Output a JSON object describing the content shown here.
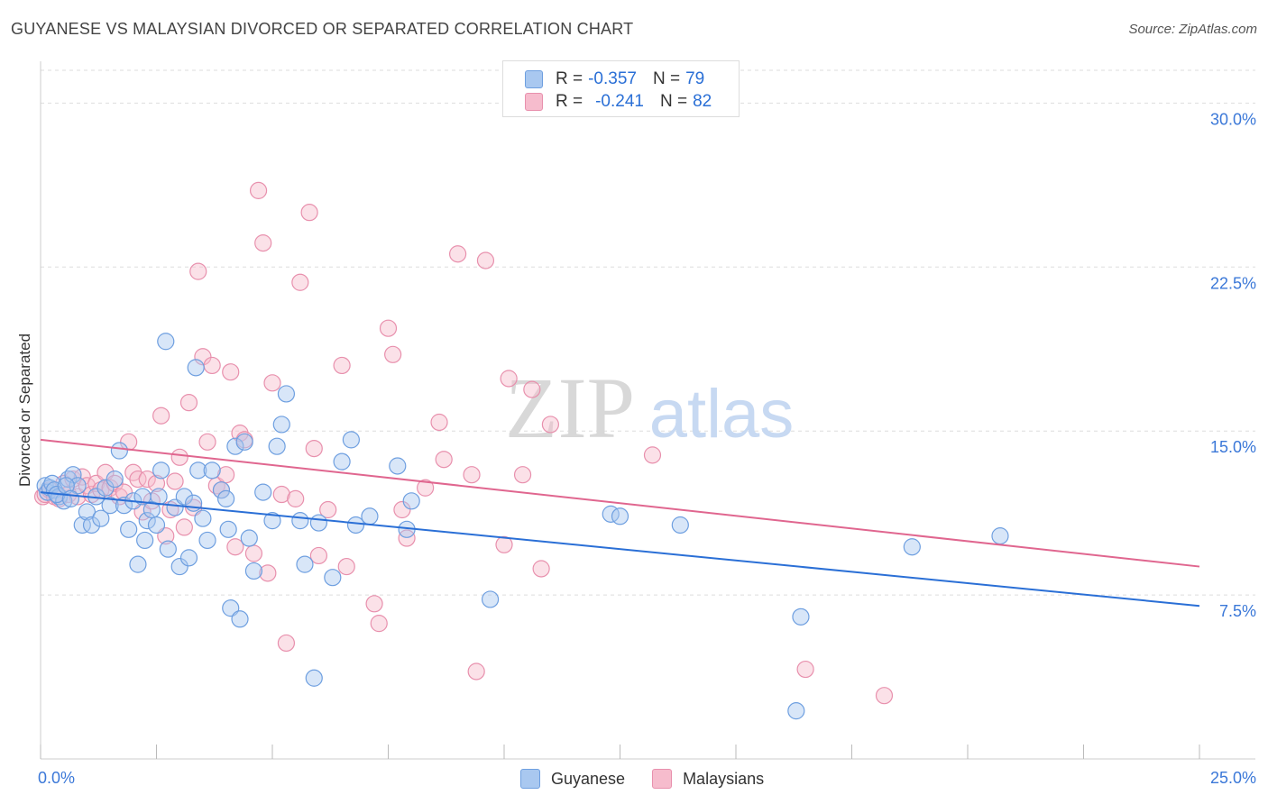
{
  "header": {
    "title": "GUYANESE VS MALAYSIAN DIVORCED OR SEPARATED CORRELATION CHART",
    "source": "Source: ZipAtlas.com"
  },
  "watermark": {
    "zip": "ZIP",
    "atlas": "atlas"
  },
  "legend_top": {
    "rows": [
      {
        "r_label": "R =",
        "r_value": "-0.357",
        "n_label": "N =",
        "n_value": "79"
      },
      {
        "r_label": "R =",
        "r_value": "-0.241",
        "n_label": "N =",
        "n_value": "82"
      }
    ]
  },
  "legend_bottom": {
    "items": [
      {
        "label": "Guyanese"
      },
      {
        "label": "Malaysians"
      }
    ]
  },
  "colors": {
    "guyanese_fill": "#a9c8f0",
    "guyanese_stroke": "#6e9fe0",
    "guyanese_line": "#2a6fd6",
    "malaysians_fill": "#f6bccd",
    "malaysians_stroke": "#e890ad",
    "malaysians_line": "#e0668f",
    "tick_label": "#3b78d8",
    "grid": "#dddddd"
  },
  "chart_data": {
    "type": "scatter",
    "title": "GUYANESE VS MALAYSIAN DIVORCED OR SEPARATED CORRELATION CHART",
    "xlabel": "",
    "ylabel": "Divorced or Separated",
    "xlim": [
      0,
      25
    ],
    "ylim": [
      0,
      31.5
    ],
    "x_tick_labels": [
      "0.0%",
      "25.0%"
    ],
    "y_ticks": [
      7.5,
      15.0,
      22.5,
      30.0
    ],
    "y_tick_labels": [
      "7.5%",
      "15.0%",
      "22.5%",
      "30.0%"
    ],
    "grid": true,
    "legend_position": "top-center",
    "series": [
      {
        "name": "Guyanese",
        "r": -0.357,
        "n": 79,
        "trend": {
          "x": [
            0,
            25
          ],
          "y": [
            12.2,
            7.0
          ]
        },
        "points": [
          [
            0.1,
            12.5
          ],
          [
            0.15,
            12.2
          ],
          [
            0.2,
            12.4
          ],
          [
            0.25,
            12.6
          ],
          [
            0.3,
            12.3
          ],
          [
            0.4,
            12.0
          ],
          [
            0.5,
            11.8
          ],
          [
            0.6,
            12.8
          ],
          [
            0.7,
            13.0
          ],
          [
            0.8,
            12.5
          ],
          [
            0.9,
            10.7
          ],
          [
            1.0,
            11.3
          ],
          [
            1.1,
            10.7
          ],
          [
            1.2,
            12.0
          ],
          [
            1.3,
            11.0
          ],
          [
            1.4,
            12.4
          ],
          [
            1.5,
            11.6
          ],
          [
            1.6,
            12.8
          ],
          [
            1.7,
            14.1
          ],
          [
            1.8,
            11.6
          ],
          [
            1.9,
            10.5
          ],
          [
            2.0,
            11.8
          ],
          [
            2.1,
            8.9
          ],
          [
            2.2,
            12.0
          ],
          [
            2.25,
            10.0
          ],
          [
            2.3,
            10.9
          ],
          [
            2.4,
            11.4
          ],
          [
            2.5,
            10.7
          ],
          [
            2.55,
            12.0
          ],
          [
            2.6,
            13.2
          ],
          [
            2.7,
            19.1
          ],
          [
            2.75,
            9.6
          ],
          [
            2.9,
            11.5
          ],
          [
            3.0,
            8.8
          ],
          [
            3.1,
            12.0
          ],
          [
            3.2,
            9.2
          ],
          [
            3.3,
            11.7
          ],
          [
            3.35,
            17.9
          ],
          [
            3.4,
            13.2
          ],
          [
            3.5,
            11.0
          ],
          [
            3.6,
            10.0
          ],
          [
            3.7,
            13.2
          ],
          [
            3.9,
            12.3
          ],
          [
            4.0,
            11.9
          ],
          [
            4.05,
            10.5
          ],
          [
            4.1,
            6.9
          ],
          [
            4.2,
            14.3
          ],
          [
            4.3,
            6.4
          ],
          [
            4.4,
            14.5
          ],
          [
            4.5,
            10.1
          ],
          [
            4.6,
            8.6
          ],
          [
            4.8,
            12.2
          ],
          [
            5.0,
            10.9
          ],
          [
            5.1,
            14.3
          ],
          [
            5.2,
            15.3
          ],
          [
            5.3,
            16.7
          ],
          [
            5.6,
            10.9
          ],
          [
            5.7,
            8.9
          ],
          [
            5.9,
            3.7
          ],
          [
            6.0,
            10.8
          ],
          [
            6.3,
            8.3
          ],
          [
            6.5,
            13.6
          ],
          [
            6.7,
            14.6
          ],
          [
            6.8,
            10.7
          ],
          [
            7.1,
            11.1
          ],
          [
            7.7,
            13.4
          ],
          [
            7.9,
            10.5
          ],
          [
            8.0,
            11.8
          ],
          [
            9.7,
            7.3
          ],
          [
            12.3,
            11.2
          ],
          [
            12.5,
            11.1
          ],
          [
            13.8,
            10.7
          ],
          [
            16.4,
            6.5
          ],
          [
            18.8,
            9.7
          ],
          [
            20.7,
            10.2
          ],
          [
            16.3,
            2.2
          ],
          [
            0.35,
            12.1
          ],
          [
            0.55,
            12.5
          ],
          [
            0.65,
            11.9
          ]
        ]
      },
      {
        "name": "Malaysians",
        "r": -0.241,
        "n": 82,
        "trend": {
          "x": [
            0,
            25
          ],
          "y": [
            14.6,
            8.8
          ]
        },
        "points": [
          [
            0.05,
            12.0
          ],
          [
            0.1,
            12.1
          ],
          [
            0.2,
            12.3
          ],
          [
            0.3,
            12.0
          ],
          [
            0.4,
            11.9
          ],
          [
            0.5,
            12.6
          ],
          [
            0.6,
            12.1
          ],
          [
            0.7,
            12.8
          ],
          [
            0.8,
            12.0
          ],
          [
            0.9,
            12.9
          ],
          [
            1.0,
            12.5
          ],
          [
            1.1,
            12.1
          ],
          [
            1.2,
            12.6
          ],
          [
            1.3,
            12.3
          ],
          [
            1.4,
            13.1
          ],
          [
            1.5,
            12.4
          ],
          [
            1.6,
            12.6
          ],
          [
            1.7,
            12.0
          ],
          [
            1.8,
            12.2
          ],
          [
            1.9,
            14.5
          ],
          [
            2.0,
            13.1
          ],
          [
            2.1,
            12.8
          ],
          [
            2.2,
            11.3
          ],
          [
            2.3,
            12.8
          ],
          [
            2.4,
            11.8
          ],
          [
            2.5,
            12.6
          ],
          [
            2.6,
            15.7
          ],
          [
            2.7,
            10.2
          ],
          [
            2.8,
            11.4
          ],
          [
            2.9,
            12.7
          ],
          [
            3.0,
            13.8
          ],
          [
            3.1,
            10.6
          ],
          [
            3.2,
            16.3
          ],
          [
            3.3,
            11.5
          ],
          [
            3.4,
            22.3
          ],
          [
            3.5,
            18.4
          ],
          [
            3.6,
            14.5
          ],
          [
            3.7,
            18.0
          ],
          [
            3.8,
            12.5
          ],
          [
            3.9,
            12.3
          ],
          [
            4.0,
            13.0
          ],
          [
            4.1,
            17.7
          ],
          [
            4.2,
            9.7
          ],
          [
            4.3,
            14.9
          ],
          [
            4.4,
            14.6
          ],
          [
            4.6,
            9.4
          ],
          [
            4.7,
            26.0
          ],
          [
            4.8,
            23.6
          ],
          [
            4.9,
            8.5
          ],
          [
            5.0,
            17.2
          ],
          [
            5.2,
            12.1
          ],
          [
            5.3,
            5.3
          ],
          [
            5.5,
            11.9
          ],
          [
            5.6,
            21.8
          ],
          [
            5.8,
            25.0
          ],
          [
            5.9,
            14.2
          ],
          [
            6.0,
            9.3
          ],
          [
            6.2,
            11.4
          ],
          [
            6.5,
            18.0
          ],
          [
            6.6,
            8.8
          ],
          [
            7.2,
            7.1
          ],
          [
            7.3,
            6.2
          ],
          [
            7.5,
            19.7
          ],
          [
            7.6,
            18.5
          ],
          [
            7.8,
            11.4
          ],
          [
            7.9,
            10.1
          ],
          [
            8.3,
            12.4
          ],
          [
            8.6,
            15.4
          ],
          [
            8.7,
            13.7
          ],
          [
            9.0,
            23.1
          ],
          [
            9.3,
            13.0
          ],
          [
            9.4,
            4.0
          ],
          [
            9.6,
            22.8
          ],
          [
            10.0,
            9.8
          ],
          [
            10.1,
            17.4
          ],
          [
            10.4,
            13.0
          ],
          [
            10.6,
            16.9
          ],
          [
            10.8,
            8.7
          ],
          [
            11.0,
            15.3
          ],
          [
            13.2,
            13.9
          ],
          [
            16.5,
            4.1
          ],
          [
            18.2,
            2.9
          ]
        ]
      }
    ]
  }
}
